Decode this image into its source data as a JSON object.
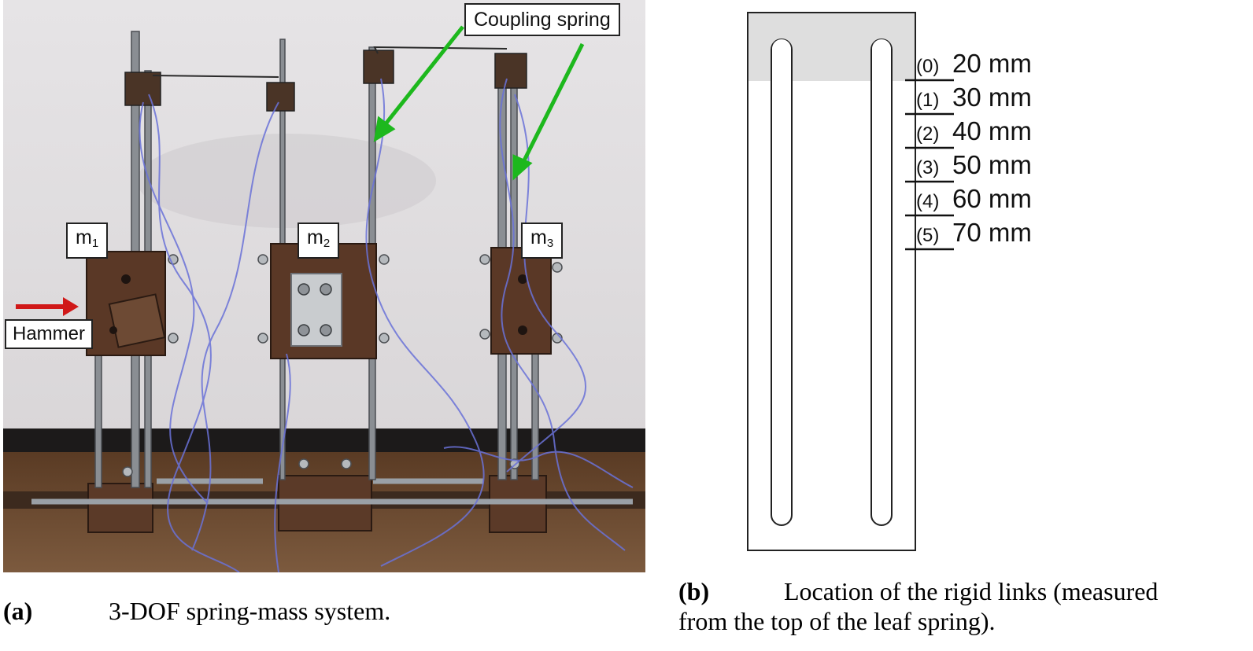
{
  "photo_labels": {
    "coupling_spring": "Coupling spring",
    "hammer": "Hammer",
    "m1": {
      "base": "m",
      "sub": "1"
    },
    "m2": {
      "base": "m",
      "sub": "2"
    },
    "m3": {
      "base": "m",
      "sub": "3"
    }
  },
  "diagram": {
    "positions": [
      {
        "index": "(0)",
        "value": "20 mm"
      },
      {
        "index": "(1)",
        "value": "30 mm"
      },
      {
        "index": "(2)",
        "value": "40 mm"
      },
      {
        "index": "(3)",
        "value": "50 mm"
      },
      {
        "index": "(4)",
        "value": "60 mm"
      },
      {
        "index": "(5)",
        "value": "70 mm"
      }
    ]
  },
  "captions": {
    "a": {
      "tag": "(a)",
      "text": "3-DOF spring-mass system."
    },
    "b": {
      "tag": "(b)",
      "text_line1": "Location of the rigid links (measured",
      "text_line2": "from the top of the leaf spring)."
    }
  },
  "colors": {
    "arrow_green": "#1db81d",
    "arrow_red": "#d01818",
    "mass_brown": "#5a3826",
    "wire_blue": "#6a72d8"
  }
}
